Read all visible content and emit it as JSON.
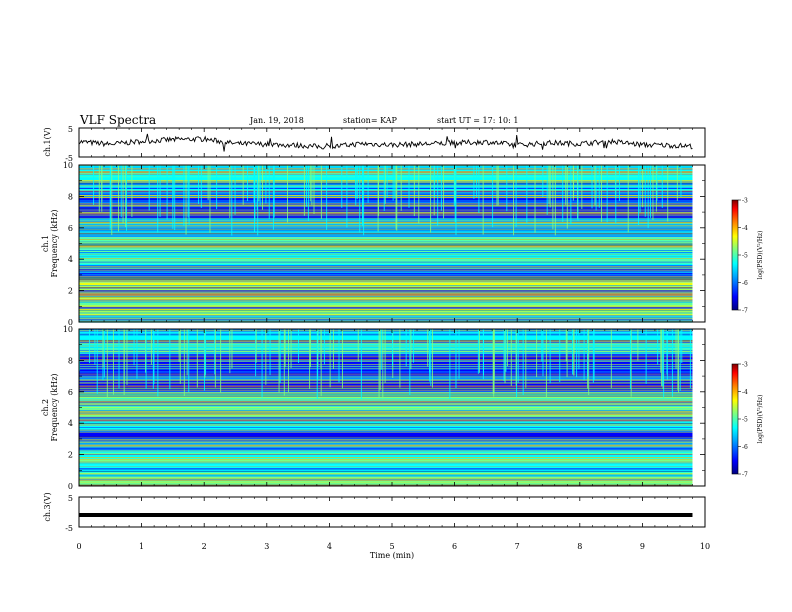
{
  "header": {
    "title": "VLF Spectra",
    "date": "Jan. 19, 2018",
    "station": "station= KAP",
    "start": "start  UT  =   17: 10: 1"
  },
  "chart_data": [
    {
      "type": "line",
      "panel": "ch1-waveform",
      "ylabel": "ch.1(V)",
      "ylim": [
        -5,
        5
      ],
      "yticks": [
        "5",
        "-5"
      ],
      "x": [
        0,
        0.5,
        1,
        1.5,
        2,
        2.5,
        3,
        3.5,
        4,
        4.5,
        5,
        5.5,
        6,
        6.5,
        7,
        7.5,
        8,
        8.5,
        9,
        9.5,
        9.8
      ],
      "values": [
        0.3,
        -0.6,
        0.4,
        1.0,
        1.2,
        -0.4,
        -0.6,
        -1.0,
        -1.6,
        -0.4,
        -0.8,
        -0.5,
        -0.2,
        0.2,
        -0.9,
        -0.1,
        -0.4,
        0.4,
        -0.8,
        -1.0,
        -1.3
      ]
    },
    {
      "type": "heatmap",
      "panel": "ch1-spectrogram",
      "ylabel": "ch.1\nFrequency (kHz)",
      "ylim": [
        0,
        10
      ],
      "yticks": [
        "0",
        "2",
        "4",
        "6",
        "8",
        "10"
      ],
      "colorbar": {
        "label": "log(PSD)(V²/Hz)",
        "ticks": [
          "-3",
          "-4",
          "-5",
          "-6",
          "-7"
        ],
        "range": [
          -7,
          -3
        ]
      },
      "bands_khz": [
        {
          "from": 0.0,
          "to": 0.4,
          "level": -5.3
        },
        {
          "from": 0.4,
          "to": 0.9,
          "level": -4.8
        },
        {
          "from": 0.9,
          "to": 1.5,
          "level": -5.2
        },
        {
          "from": 1.5,
          "to": 2.5,
          "level": -4.7
        },
        {
          "from": 2.5,
          "to": 2.9,
          "level": -5.0
        },
        {
          "from": 2.9,
          "to": 3.6,
          "level": -6.7
        },
        {
          "from": 3.6,
          "to": 4.6,
          "level": -5.4
        },
        {
          "from": 4.6,
          "to": 5.4,
          "level": -5.0
        },
        {
          "from": 5.4,
          "to": 6.6,
          "level": -5.8
        },
        {
          "from": 6.6,
          "to": 8.4,
          "level": -6.3
        },
        {
          "from": 8.4,
          "to": 10.0,
          "level": -5.5
        }
      ]
    },
    {
      "type": "heatmap",
      "panel": "ch2-spectrogram",
      "ylabel": "ch.2\nFrequency (kHz)",
      "ylim": [
        0,
        10
      ],
      "yticks": [
        "0",
        "2",
        "4",
        "6",
        "8",
        "10"
      ],
      "colorbar": {
        "label": "log(PSD)(V²/Hz)",
        "ticks": [
          "-3",
          "-4",
          "-5",
          "-6",
          "-7"
        ],
        "range": [
          -7,
          -3
        ]
      },
      "bands_khz": [
        {
          "from": 0.0,
          "to": 0.6,
          "level": -5.0
        },
        {
          "from": 0.6,
          "to": 1.3,
          "level": -5.3
        },
        {
          "from": 1.3,
          "to": 2.2,
          "level": -5.6
        },
        {
          "from": 2.2,
          "to": 2.9,
          "level": -6.2
        },
        {
          "from": 2.9,
          "to": 3.5,
          "level": -6.6
        },
        {
          "from": 3.5,
          "to": 4.2,
          "level": -5.6
        },
        {
          "from": 4.2,
          "to": 5.2,
          "level": -5.1
        },
        {
          "from": 5.2,
          "to": 6.0,
          "level": -5.0
        },
        {
          "from": 6.0,
          "to": 8.4,
          "level": -6.3
        },
        {
          "from": 8.4,
          "to": 10.0,
          "level": -5.5
        }
      ]
    },
    {
      "type": "line",
      "panel": "ch3-waveform",
      "ylabel": "ch.3(V)",
      "ylim": [
        -5,
        5
      ],
      "yticks": [
        "5",
        "-5"
      ],
      "x": [
        0,
        9.8
      ],
      "values": [
        -1,
        -1
      ]
    }
  ],
  "xaxis": {
    "label": "Time (min)",
    "range": [
      0,
      10
    ],
    "ticks": [
      "0",
      "1",
      "2",
      "3",
      "4",
      "5",
      "6",
      "7",
      "8",
      "9",
      "10"
    ]
  },
  "colors": {
    "colormap": [
      "#00007f",
      "#0000ff",
      "#00a0ff",
      "#00ffff",
      "#7fff7f",
      "#ffff00",
      "#ff8000",
      "#ff0000",
      "#7f0000"
    ]
  }
}
